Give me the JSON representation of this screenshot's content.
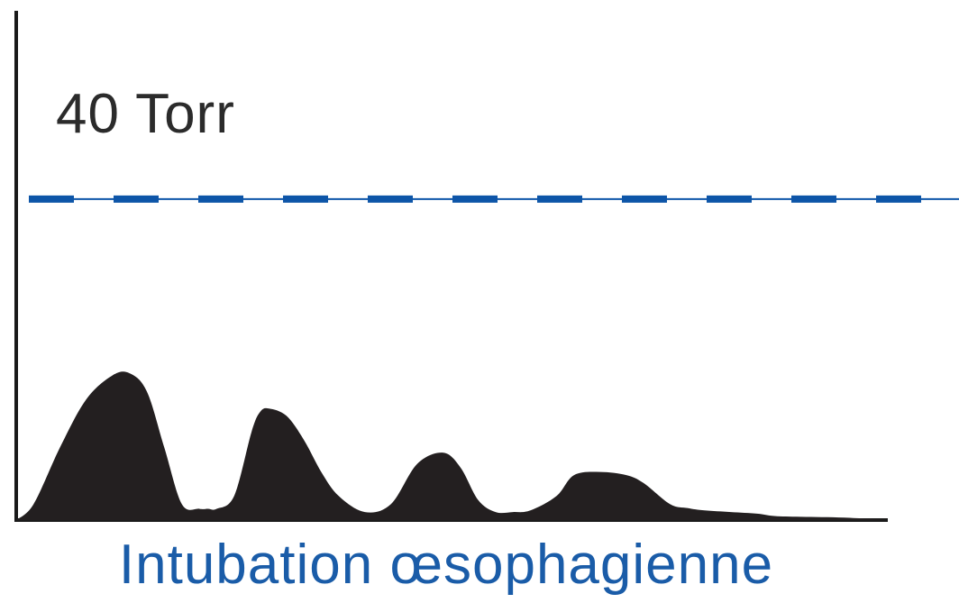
{
  "chart_data": {
    "type": "area",
    "title": "Intubation œsophagienne",
    "reference_line": {
      "label": "40 Torr",
      "value": 40,
      "style": "dashed"
    },
    "ylim": [
      0,
      62
    ],
    "xlim": [
      0,
      100
    ],
    "grid": false,
    "x": [
      0,
      2,
      5,
      8,
      11,
      13,
      15,
      17,
      19,
      21,
      22,
      23,
      25,
      27,
      28,
      29,
      31,
      33,
      35,
      37,
      40,
      43,
      46,
      49,
      51,
      53,
      55,
      57,
      59,
      62,
      64,
      67,
      70,
      72,
      75,
      77,
      79,
      82,
      85,
      87,
      90,
      95,
      100
    ],
    "y": [
      0,
      2,
      9,
      15,
      18,
      18.3,
      16,
      9,
      2,
      1.4,
      1.4,
      1.4,
      3,
      11,
      13.5,
      13.9,
      13,
      10,
      6,
      3,
      1,
      2,
      7,
      8.4,
      6.5,
      2.5,
      1,
      1,
      1.2,
      3,
      5.6,
      6,
      5.6,
      4.6,
      2,
      1.5,
      1.2,
      1,
      0.8,
      0.5,
      0.4,
      0.3,
      0
    ]
  },
  "colors": {
    "waveform": "#231f20",
    "reference_line": "#0d55a8",
    "caption": "#1a5ca8",
    "axis": "#1a1a1a"
  }
}
